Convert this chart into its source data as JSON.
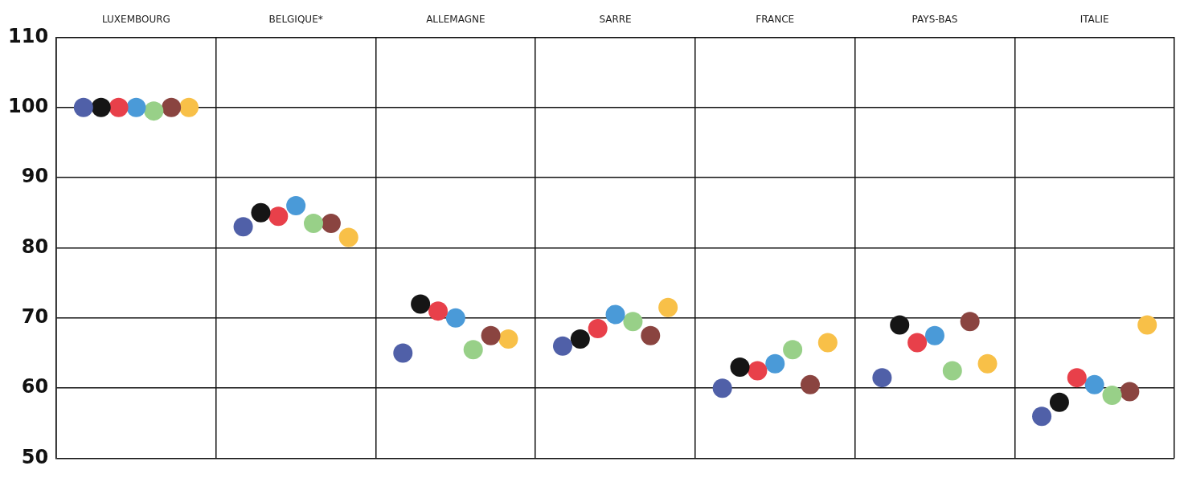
{
  "chart_data": {
    "type": "scatter",
    "categories": [
      "LUXEMBOURG",
      "BELGIQUE*",
      "ALLEMAGNE",
      "SARRE",
      "FRANCE",
      "PAYS-BAS",
      "ITALIE"
    ],
    "series": [
      {
        "color": "#5060a8",
        "values": [
          100,
          83,
          65,
          66,
          60,
          61.5,
          56
        ]
      },
      {
        "color": "#151515",
        "values": [
          100,
          85,
          72,
          67,
          63,
          69,
          58
        ]
      },
      {
        "color": "#e8404a",
        "values": [
          100,
          84.5,
          71,
          68.5,
          62.5,
          66.5,
          61.5
        ]
      },
      {
        "color": "#4a9ad8",
        "values": [
          100,
          86,
          70,
          70.5,
          63.5,
          67.5,
          60.5
        ]
      },
      {
        "color": "#98d088",
        "values": [
          99.5,
          83.5,
          65.5,
          69.5,
          65.5,
          62.5,
          59
        ]
      },
      {
        "color": "#8a4440",
        "values": [
          100,
          83.5,
          67.5,
          67.5,
          60.5,
          69.5,
          59.5
        ]
      },
      {
        "color": "#f8c048",
        "values": [
          100,
          81.5,
          67,
          71.5,
          66.5,
          63.5,
          69
        ]
      }
    ],
    "ylim": [
      50,
      110
    ],
    "yticks": [
      50,
      60,
      70,
      80,
      90,
      100,
      110
    ],
    "grid": true,
    "legend": false,
    "marker": "circle"
  }
}
